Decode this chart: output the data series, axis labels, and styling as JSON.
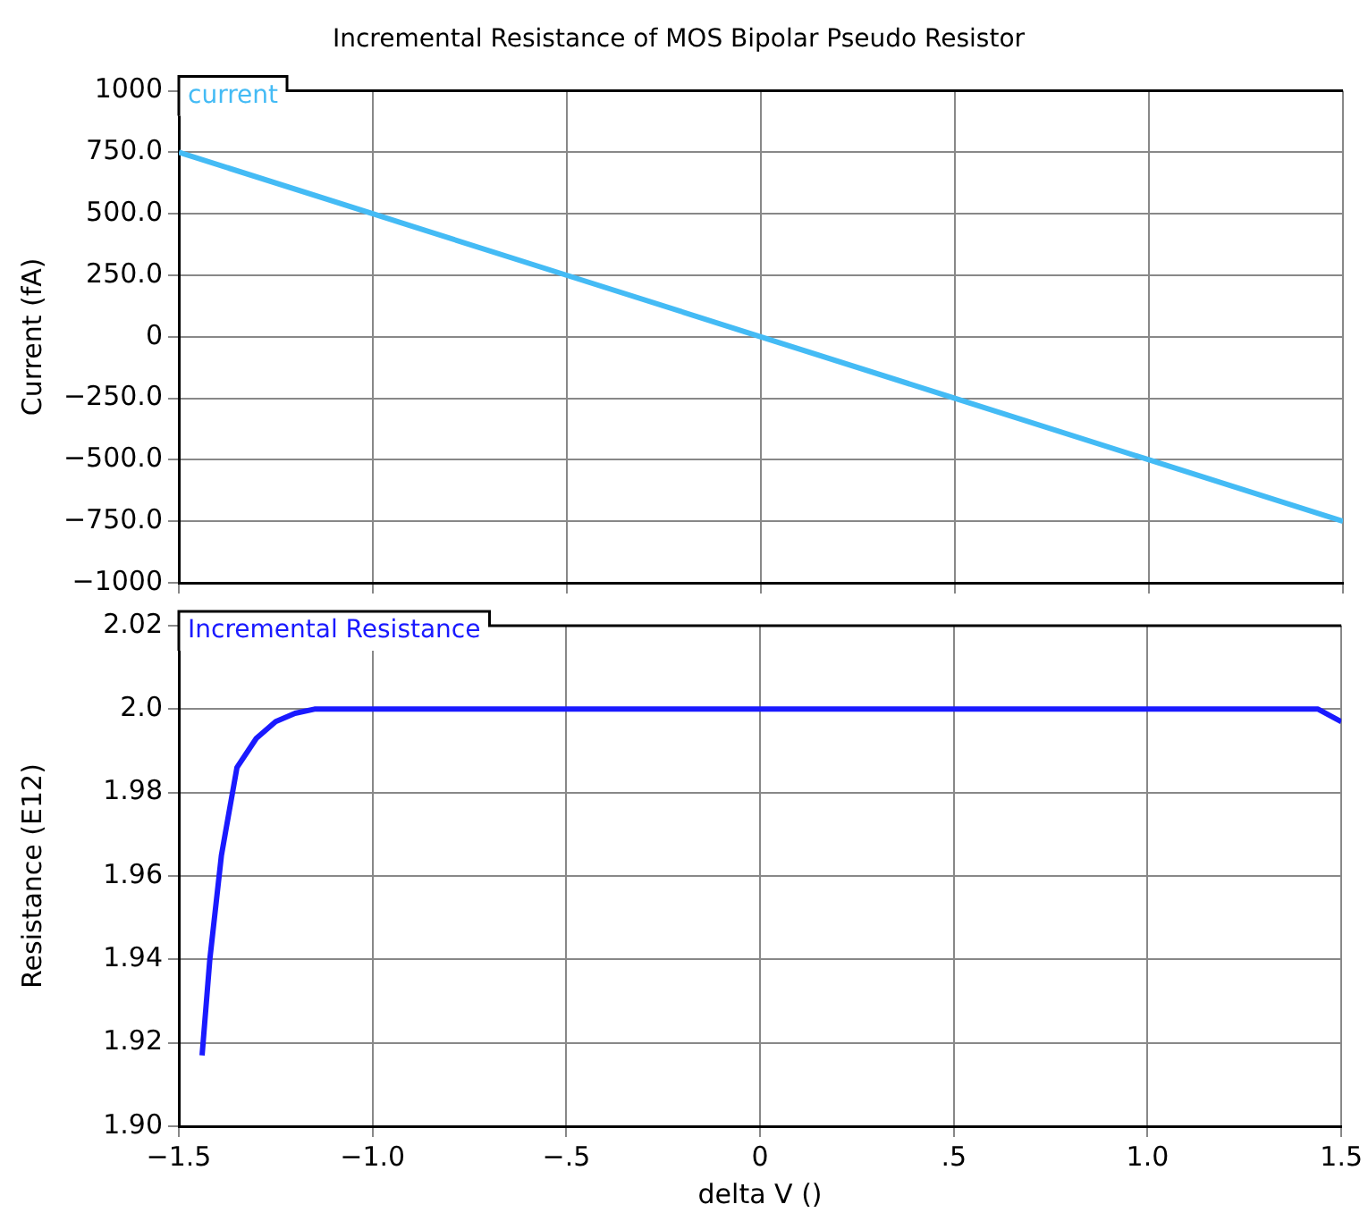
{
  "chart_data": [
    {
      "type": "line",
      "title": "Incremental Resistance of MOS Bipolar Pseudo Resistor",
      "ylabel": "Current (fA)",
      "xlim": [
        -1.5,
        1.5
      ],
      "ylim": [
        -1000,
        1000
      ],
      "xticks": [
        -1.5,
        -1,
        -0.5,
        0,
        0.5,
        1,
        1.5
      ],
      "yticks": [
        1000,
        {
          "value": 750,
          "label": "750.0"
        },
        {
          "value": 500,
          "label": "500.0"
        },
        {
          "value": 250,
          "label": "250.0"
        },
        0,
        {
          "value": -250,
          "label": "−250.0"
        },
        {
          "value": -500,
          "label": "−500.0"
        },
        {
          "value": -750,
          "label": "−750.0"
        },
        {
          "value": -1000,
          "label": "−1000"
        }
      ],
      "tick_labels": "y",
      "grid": true,
      "legend": "top left",
      "x": [
        -1.5,
        -1.0,
        -0.5,
        0,
        0.5,
        1.0,
        1.5
      ],
      "series": [
        {
          "name": "current",
          "color": "#44bbf5",
          "values": [
            750,
            500,
            250,
            0,
            -250,
            -500,
            -750
          ]
        }
      ]
    },
    {
      "type": "line",
      "xlabel": "delta V ()",
      "ylabel": "Resistance (E12)",
      "xlim": [
        -1.5,
        1.5
      ],
      "ylim": [
        1.9,
        2.02
      ],
      "xticks": [
        {
          "value": -1.5,
          "label": "−1.5"
        },
        {
          "value": -1,
          "label": "−1.0"
        },
        {
          "value": -0.5,
          "label": "−.5"
        },
        0,
        {
          "value": 0.5,
          "label": ".5"
        },
        {
          "value": 1,
          "label": "1.0"
        },
        1.5
      ],
      "yticks": [
        {
          "value": 1.9,
          "label": "1.90"
        },
        1.92,
        1.94,
        1.96,
        1.98,
        {
          "value": 2,
          "label": "2.0"
        },
        2.02
      ],
      "grid": true,
      "legend": "top left",
      "x": [
        -1.44,
        -1.42,
        -1.39,
        -1.35,
        -1.3,
        -1.25,
        -1.2,
        -1.15,
        -1.0,
        1.44,
        1.5
      ],
      "series": [
        {
          "name": "Incremental Resistance",
          "color": "#1a1aff",
          "values": [
            1.917,
            1.94,
            1.965,
            1.986,
            1.993,
            1.997,
            1.999,
            2.0,
            2.0,
            2.0,
            1.997
          ]
        }
      ]
    }
  ]
}
